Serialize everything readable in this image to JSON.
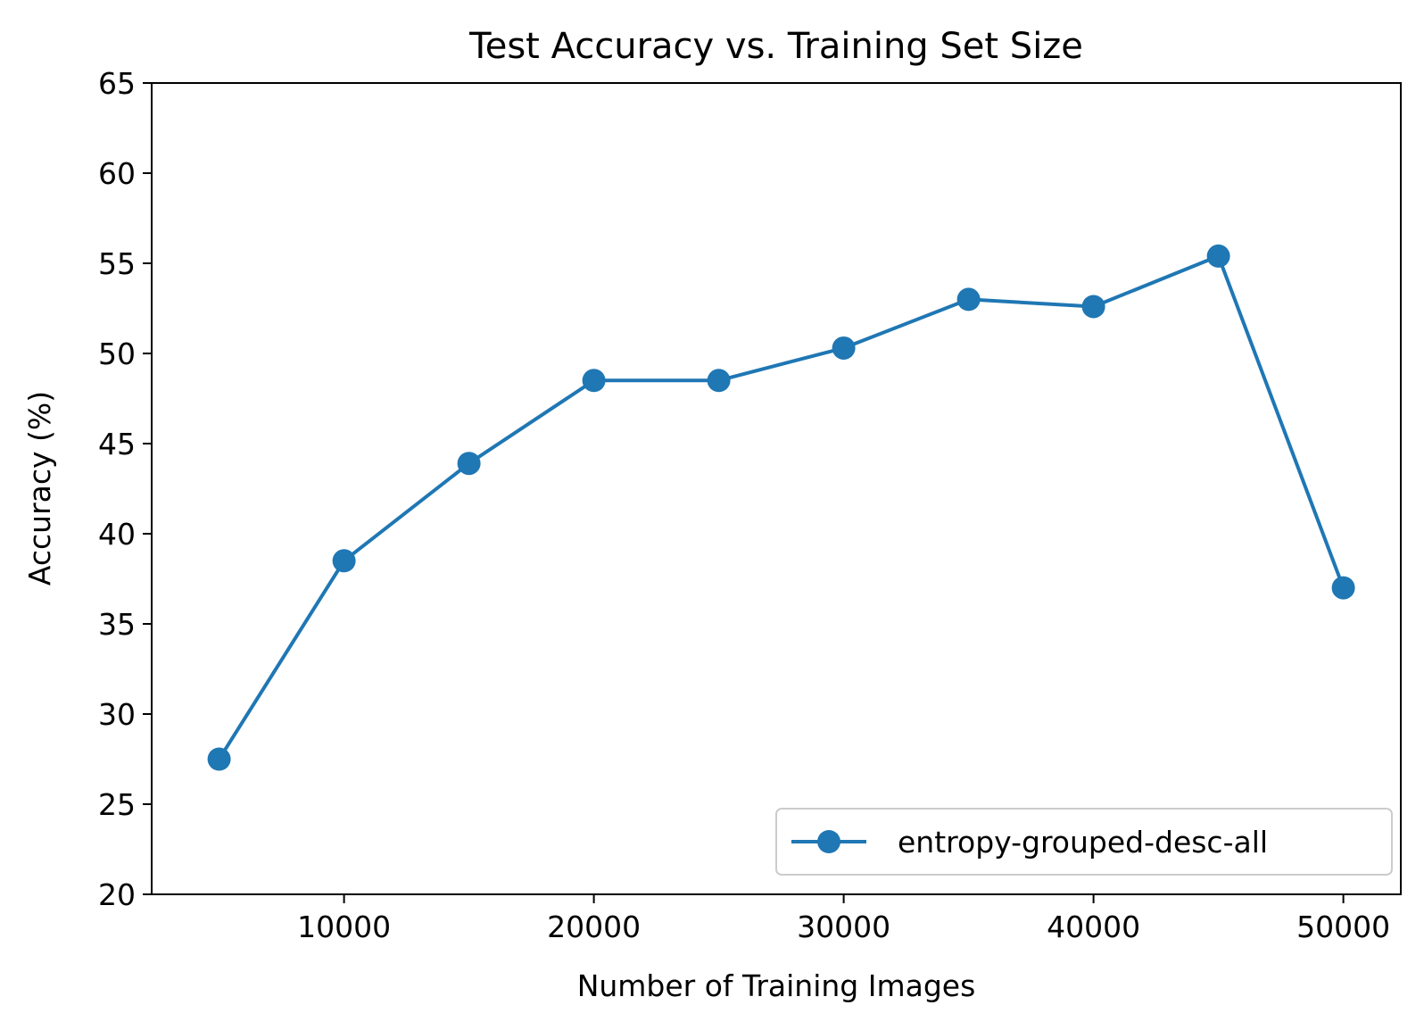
{
  "chart_data": {
    "type": "line",
    "title": "Test Accuracy vs. Training Set Size",
    "xlabel": "Number of Training Images",
    "ylabel": "Accuracy (%)",
    "xlim": [
      2300,
      52300
    ],
    "ylim": [
      20,
      65
    ],
    "xticks": [
      10000,
      20000,
      30000,
      40000,
      50000
    ],
    "yticks": [
      20,
      25,
      30,
      35,
      40,
      45,
      50,
      55,
      60,
      65
    ],
    "grid": false,
    "legend_position": "lower-right",
    "series": [
      {
        "name": "entropy-grouped-desc-all",
        "color": "#1f77b4",
        "marker": "circle",
        "x": [
          5000,
          10000,
          15000,
          20000,
          25000,
          30000,
          35000,
          40000,
          45000,
          50000
        ],
        "y": [
          27.5,
          38.5,
          43.9,
          48.5,
          48.5,
          50.3,
          53.0,
          52.6,
          55.4,
          37.0
        ]
      }
    ]
  }
}
